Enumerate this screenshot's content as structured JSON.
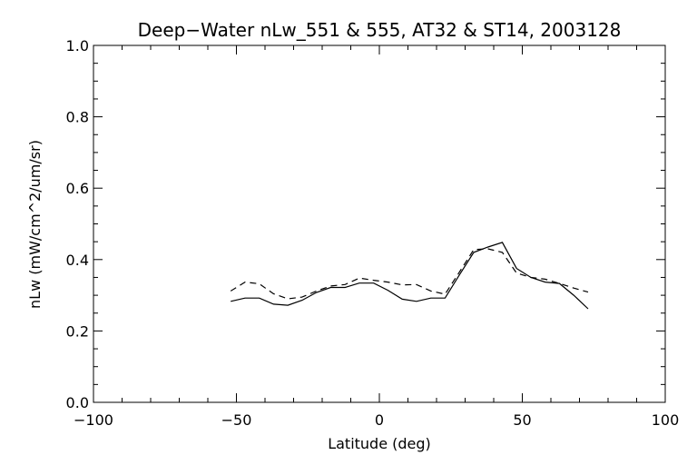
{
  "chart_data": {
    "type": "line",
    "title": "Deep−Water nLw_551 & 555, AT32 & ST14, 2003128",
    "xlabel": "Latitude (deg)",
    "ylabel": "nLw (mW/cm^2/um/sr)",
    "xlim": [
      -100,
      100
    ],
    "ylim": [
      0.0,
      1.0
    ],
    "x_ticks": [
      -100,
      -50,
      0,
      50,
      100
    ],
    "x_tick_labels": [
      "−100",
      "−50",
      "0",
      "50",
      "100"
    ],
    "y_ticks": [
      0.0,
      0.2,
      0.4,
      0.6,
      0.8,
      1.0
    ],
    "y_tick_labels": [
      "0.0",
      "0.2",
      "0.4",
      "0.6",
      "0.8",
      "1.0"
    ],
    "grid": false,
    "series": [
      {
        "style": "solid",
        "color": "#000000",
        "x": [
          -52,
          -47,
          -42,
          -37,
          -32,
          -27,
          -22,
          -17,
          -12,
          -7,
          -2,
          3,
          8,
          13,
          18,
          23,
          28,
          33,
          38,
          43,
          48,
          53,
          58,
          63,
          68,
          73
        ],
        "y": [
          0.283,
          0.292,
          0.292,
          0.275,
          0.272,
          0.286,
          0.308,
          0.322,
          0.322,
          0.334,
          0.334,
          0.314,
          0.289,
          0.283,
          0.292,
          0.292,
          0.357,
          0.42,
          0.435,
          0.448,
          0.375,
          0.35,
          0.337,
          0.333,
          0.3,
          0.262
        ]
      },
      {
        "style": "dashed",
        "color": "#000000",
        "x": [
          -52,
          -47,
          -42,
          -37,
          -32,
          -27,
          -22,
          -17,
          -12,
          -7,
          -2,
          3,
          8,
          13,
          18,
          23,
          28,
          33,
          38,
          43,
          48,
          53,
          58,
          63,
          68,
          73
        ],
        "y": [
          0.312,
          0.337,
          0.332,
          0.304,
          0.29,
          0.295,
          0.312,
          0.326,
          0.33,
          0.348,
          0.342,
          0.337,
          0.329,
          0.33,
          0.312,
          0.303,
          0.365,
          0.428,
          0.43,
          0.42,
          0.362,
          0.35,
          0.345,
          0.333,
          0.32,
          0.309
        ]
      }
    ]
  }
}
